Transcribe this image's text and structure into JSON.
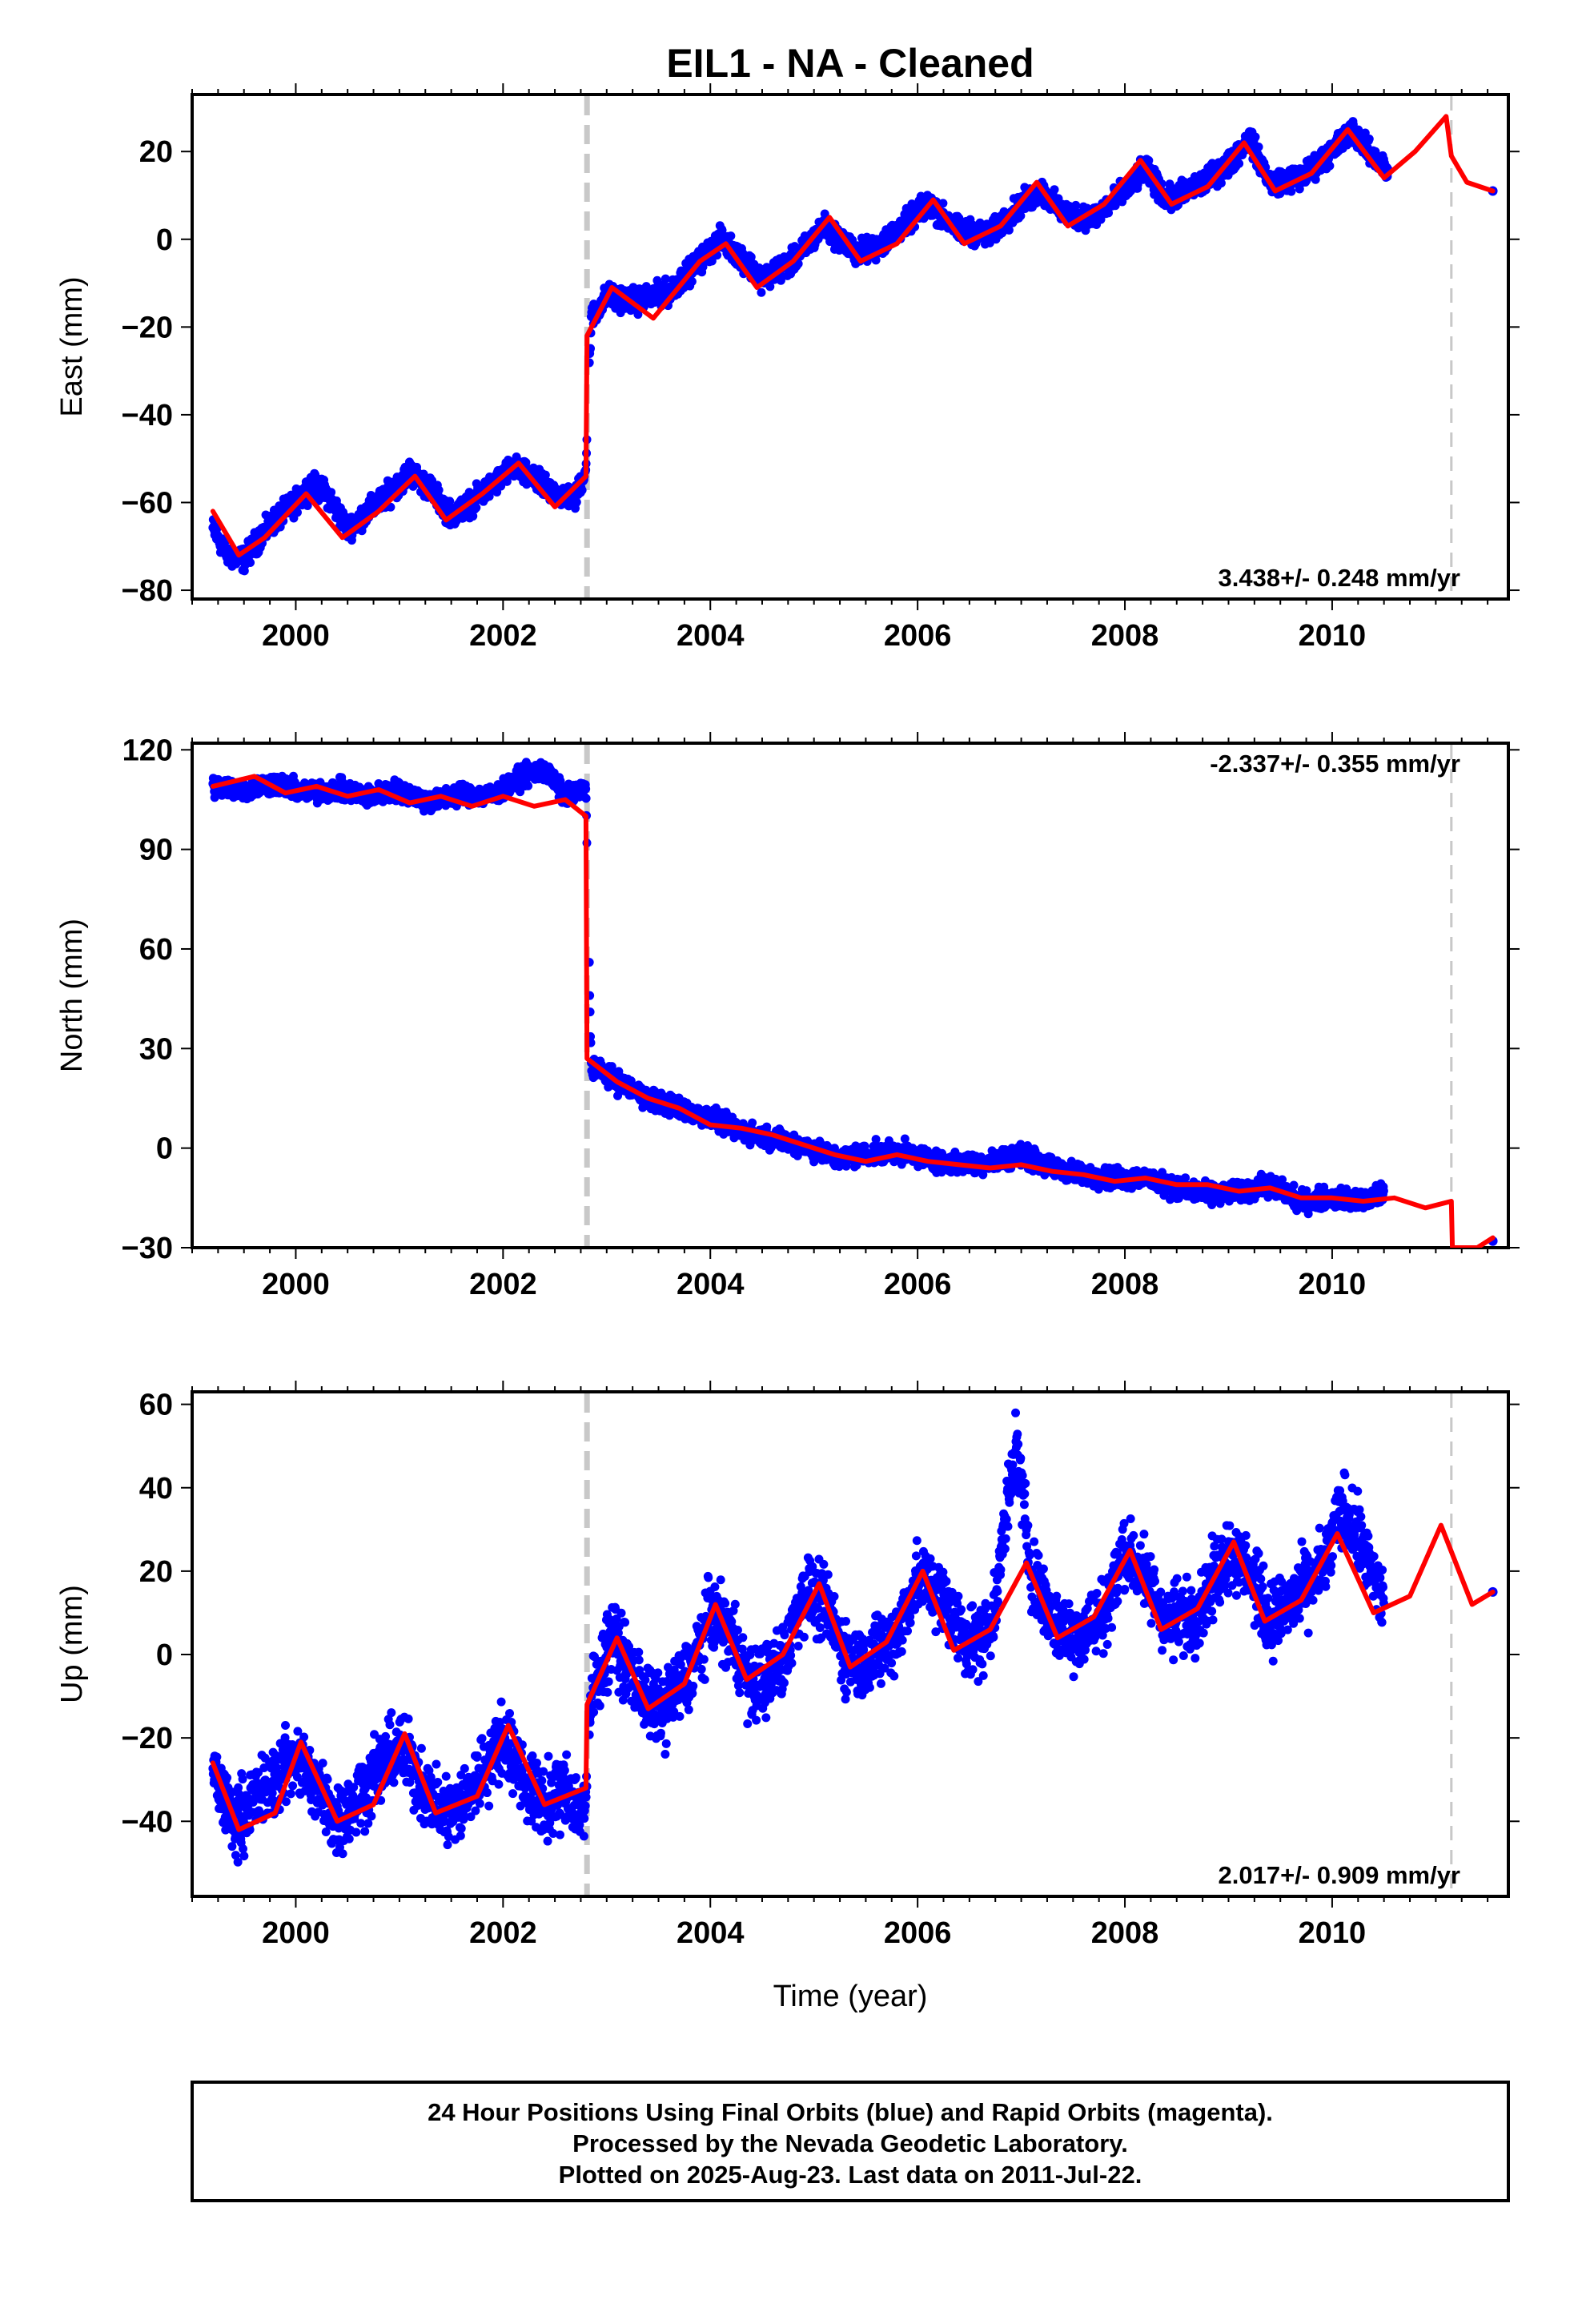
{
  "figure": {
    "title": "EIL1  - NA - Cleaned",
    "xlabel": "Time (year)",
    "footer": [
      "24 Hour Positions Using Final Orbits (blue) and Rapid Orbits (magenta).",
      "Processed by the Nevada Geodetic Laboratory.",
      "Plotted on 2025-Aug-23. Last data on 2011-Jul-22."
    ]
  },
  "colors": {
    "data_points": "#0000ff",
    "model_line": "#ff0000",
    "offset_marker": "#c8c8c8",
    "frame": "#000000"
  },
  "chart_data": [
    {
      "type": "scatter",
      "component": "East",
      "ylabel": "East (mm)",
      "rate_label": "3.438+/- 0.248 mm/yr",
      "rate_position": "bottom-right",
      "xlim": [
        1999.0,
        2011.7
      ],
      "ylim": [
        -82,
        33
      ],
      "yticks": [
        -80,
        -60,
        -40,
        -20,
        0,
        20
      ],
      "xticks": [
        2000,
        2002,
        2004,
        2006,
        2008,
        2010
      ],
      "offset_epochs": [
        2002.81,
        2011.15
      ],
      "series": [
        {
          "kind": "observations",
          "x": [
            1999.2,
            1999.35,
            1999.5,
            1999.65,
            1999.8,
            2000.0,
            2000.15,
            2000.3,
            2000.5,
            2000.7,
            2000.9,
            2001.1,
            2001.3,
            2001.5,
            2001.7,
            2001.9,
            2002.1,
            2002.3,
            2002.5,
            2002.7,
            2002.8,
            2002.85,
            2003.0,
            2003.3,
            2003.6,
            2003.9,
            2004.1,
            2004.3,
            2004.5,
            2004.8,
            2005.1,
            2005.4,
            2005.6,
            2005.9,
            2006.1,
            2006.4,
            2006.7,
            2007.0,
            2007.2,
            2007.4,
            2007.7,
            2008.0,
            2008.2,
            2008.4,
            2008.7,
            2009.0,
            2009.2,
            2009.4,
            2009.7,
            2010.0,
            2010.2,
            2010.35,
            2010.55,
            2011.55
          ],
          "y": [
            -66,
            -72,
            -73,
            -68,
            -64,
            -60,
            -56,
            -58,
            -66,
            -62,
            -58,
            -53,
            -57,
            -63,
            -60,
            -56,
            -52,
            -55,
            -58,
            -59,
            -52,
            -18,
            -13,
            -14,
            -12,
            -5,
            0,
            -4,
            -9,
            -5,
            3,
            -3,
            -2,
            4,
            8,
            2,
            1,
            8,
            11,
            6,
            5,
            11,
            16,
            9,
            12,
            17,
            23,
            13,
            14,
            20,
            25,
            20,
            15,
            11
          ]
        },
        {
          "kind": "model",
          "x": [
            1999.2,
            1999.45,
            1999.7,
            2000.1,
            2000.45,
            2000.8,
            2001.15,
            2001.45,
            2001.8,
            2002.15,
            2002.5,
            2002.8,
            2002.81,
            2003.05,
            2003.45,
            2003.9,
            2004.15,
            2004.45,
            2004.8,
            2005.15,
            2005.45,
            2005.8,
            2006.15,
            2006.45,
            2006.8,
            2007.15,
            2007.45,
            2007.8,
            2008.15,
            2008.45,
            2008.8,
            2009.15,
            2009.45,
            2009.8,
            2010.15,
            2010.5,
            2010.8,
            2011.1,
            2011.15,
            2011.3,
            2011.55
          ],
          "y": [
            -62,
            -72,
            -68,
            -58,
            -68,
            -62,
            -54,
            -64,
            -58,
            -51,
            -61,
            -54,
            -22,
            -11,
            -18,
            -5,
            -1,
            -11,
            -5,
            5,
            -5,
            -1,
            9,
            -1,
            3,
            13,
            3,
            8,
            18,
            8,
            12,
            22,
            11,
            15,
            25,
            14,
            20,
            28,
            19,
            13,
            11
          ]
        }
      ]
    },
    {
      "type": "scatter",
      "component": "North",
      "ylabel": "North (mm)",
      "rate_label": "-2.337+/- 0.355 mm/yr",
      "rate_position": "top-right",
      "xlim": [
        1999.0,
        2011.7
      ],
      "ylim": [
        -30,
        122
      ],
      "yticks": [
        -30,
        0,
        30,
        60,
        90,
        120
      ],
      "xticks": [
        2000,
        2002,
        2004,
        2006,
        2008,
        2010
      ],
      "offset_epochs": [
        2002.81,
        2011.15
      ],
      "series": [
        {
          "kind": "observations",
          "x": [
            1999.2,
            1999.5,
            1999.8,
            2000.1,
            2000.4,
            2000.7,
            2001.0,
            2001.3,
            2001.6,
            2001.9,
            2002.2,
            2002.4,
            2002.6,
            2002.8,
            2002.85,
            2003.1,
            2003.4,
            2003.7,
            2004.0,
            2004.3,
            2004.6,
            2004.9,
            2005.2,
            2005.5,
            2005.8,
            2006.1,
            2006.4,
            2006.7,
            2007.0,
            2007.3,
            2007.6,
            2007.9,
            2008.2,
            2008.5,
            2008.8,
            2009.1,
            2009.4,
            2009.7,
            2010.0,
            2010.3,
            2010.5,
            2011.55
          ],
          "y": [
            109,
            108,
            110,
            107,
            108,
            106,
            108,
            104,
            107,
            106,
            112,
            114,
            106,
            108,
            25,
            20,
            15,
            12,
            9,
            5,
            3,
            1,
            -3,
            -2,
            -1,
            -3,
            -5,
            -4,
            -2,
            -6,
            -8,
            -9,
            -9,
            -12,
            -14,
            -13,
            -11,
            -16,
            -15,
            -16,
            -14,
            -28
          ]
        },
        {
          "kind": "model",
          "x": [
            1999.2,
            1999.6,
            1999.9,
            2000.2,
            2000.5,
            2000.8,
            2001.1,
            2001.4,
            2001.7,
            2002.0,
            2002.3,
            2002.6,
            2002.8,
            2002.81,
            2003.1,
            2003.4,
            2003.7,
            2004.0,
            2004.3,
            2004.6,
            2004.9,
            2005.2,
            2005.5,
            2005.8,
            2006.1,
            2006.4,
            2006.7,
            2007.0,
            2007.3,
            2007.6,
            2007.9,
            2008.2,
            2008.5,
            2008.8,
            2009.1,
            2009.4,
            2009.7,
            2010.0,
            2010.3,
            2010.6,
            2010.9,
            2011.15,
            2011.16,
            2011.4,
            2011.55
          ],
          "y": [
            109,
            112,
            107,
            109,
            106,
            108,
            104,
            106,
            103,
            106,
            103,
            105,
            100,
            27,
            20,
            15,
            12,
            7,
            6,
            4,
            1,
            -2,
            -4,
            -2,
            -4,
            -5,
            -6,
            -5,
            -7,
            -8,
            -10,
            -9,
            -11,
            -11,
            -13,
            -12,
            -15,
            -15,
            -16,
            -15,
            -18,
            -16,
            -30,
            -30,
            -27
          ]
        }
      ]
    },
    {
      "type": "scatter",
      "component": "Up",
      "ylabel": "Up (mm)",
      "rate_label": "2.017+/- 0.909 mm/yr",
      "rate_position": "bottom-right",
      "xlim": [
        1999.0,
        2011.7
      ],
      "ylim": [
        -58,
        63
      ],
      "yticks": [
        -40,
        -20,
        0,
        20,
        40,
        60
      ],
      "xticks": [
        2000,
        2002,
        2004,
        2006,
        2008,
        2010
      ],
      "offset_epochs": [
        2002.81,
        2011.15
      ],
      "series": [
        {
          "kind": "observations",
          "x": [
            1999.2,
            1999.4,
            1999.6,
            1999.8,
            2000.0,
            2000.2,
            2000.4,
            2000.6,
            2000.8,
            2001.0,
            2001.2,
            2001.4,
            2001.6,
            2001.8,
            2002.0,
            2002.2,
            2002.4,
            2002.6,
            2002.8,
            2002.85,
            2003.05,
            2003.3,
            2003.5,
            2003.8,
            2004.0,
            2004.2,
            2004.4,
            2004.7,
            2004.9,
            2005.1,
            2005.3,
            2005.5,
            2005.8,
            2006.0,
            2006.2,
            2006.5,
            2006.7,
            2006.95,
            2007.1,
            2007.3,
            2007.5,
            2007.8,
            2008.0,
            2008.2,
            2008.4,
            2008.7,
            2009.0,
            2009.2,
            2009.4,
            2009.7,
            2009.9,
            2010.1,
            2010.3,
            2010.5,
            2011.55
          ],
          "y": [
            -28,
            -40,
            -35,
            -30,
            -24,
            -32,
            -40,
            -34,
            -28,
            -22,
            -30,
            -38,
            -36,
            -28,
            -20,
            -30,
            -36,
            -32,
            -38,
            -10,
            5,
            -8,
            -14,
            -5,
            10,
            5,
            -8,
            -2,
            15,
            12,
            0,
            -2,
            5,
            18,
            15,
            3,
            5,
            50,
            20,
            8,
            4,
            10,
            25,
            18,
            8,
            10,
            25,
            20,
            8,
            15,
            20,
            35,
            25,
            12,
            15
          ]
        },
        {
          "kind": "model",
          "x": [
            1999.2,
            1999.45,
            1999.8,
            2000.05,
            2000.4,
            2000.75,
            2001.05,
            2001.35,
            2001.75,
            2002.05,
            2002.4,
            2002.8,
            2002.81,
            2003.1,
            2003.4,
            2003.75,
            2004.05,
            2004.35,
            2004.7,
            2005.05,
            2005.35,
            2005.7,
            2006.05,
            2006.35,
            2006.7,
            2007.05,
            2007.35,
            2007.7,
            2008.05,
            2008.35,
            2008.7,
            2009.05,
            2009.35,
            2009.7,
            2010.05,
            2010.4,
            2010.75,
            2011.05,
            2011.35,
            2011.55
          ],
          "y": [
            -26,
            -42,
            -38,
            -21,
            -40,
            -36,
            -19,
            -38,
            -34,
            -17,
            -36,
            -32,
            -12,
            4,
            -13,
            -7,
            12,
            -6,
            0,
            17,
            -3,
            3,
            20,
            1,
            6,
            22,
            4,
            9,
            25,
            6,
            11,
            27,
            8,
            13,
            29,
            10,
            14,
            31,
            12,
            15
          ]
        }
      ]
    }
  ]
}
